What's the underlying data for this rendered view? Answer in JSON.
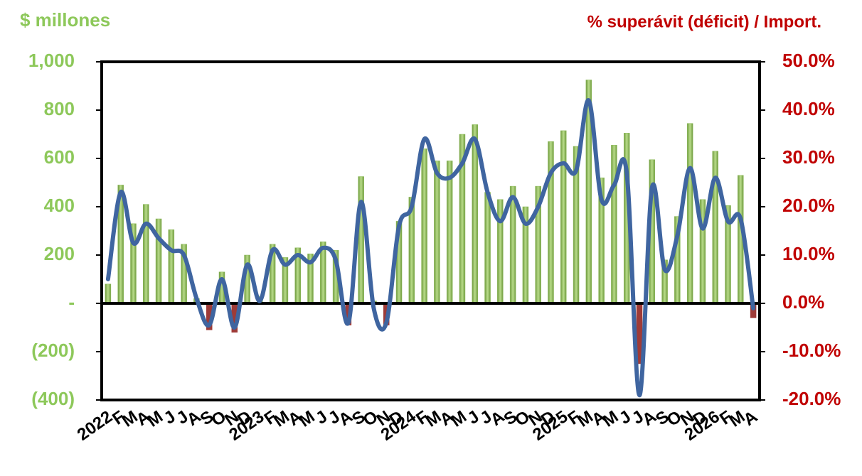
{
  "chart_data": {
    "type": "bar_line",
    "y_label": "$ millones",
    "y2_label": "% superávit (déficit) / Import.",
    "categories": [
      "2022",
      "F",
      "M",
      "A",
      "M",
      "J",
      "J",
      "A",
      "S",
      "O",
      "N",
      "D",
      "2023",
      "F",
      "M",
      "A",
      "M",
      "J",
      "J",
      "A",
      "S",
      "O",
      "N",
      "D",
      "2024",
      "F",
      "M",
      "A",
      "M",
      "J",
      "J",
      "A",
      "S",
      "O",
      "N",
      "D",
      "2025",
      "F",
      "M",
      "A",
      "M",
      "J",
      "J",
      "A",
      "S",
      "O",
      "N",
      "D",
      "2026",
      "F",
      "M",
      "A"
    ],
    "series": [
      {
        "type": "bar",
        "color": "#8dbb5a",
        "negative_color": "#9e3b38",
        "values": [
          80,
          490,
          330,
          410,
          350,
          305,
          245,
          20,
          -110,
          130,
          -120,
          200,
          30,
          245,
          190,
          230,
          205,
          255,
          220,
          -90,
          525,
          10,
          -90,
          340,
          440,
          640,
          590,
          590,
          700,
          740,
          460,
          430,
          485,
          400,
          485,
          670,
          715,
          650,
          925,
          520,
          655,
          705,
          -250,
          595,
          180,
          360,
          745,
          430,
          630,
          405,
          530,
          -60
        ]
      },
      {
        "type": "line",
        "axis": "y2",
        "color": "#3f65a0",
        "values": [
          5,
          23,
          12.5,
          16.5,
          13.5,
          11,
          10,
          1,
          -4.5,
          5,
          -5,
          8,
          0.5,
          11,
          8,
          10,
          8.5,
          11.5,
          9,
          -4,
          21,
          -1,
          -4,
          16,
          20,
          34,
          27,
          26,
          29,
          34,
          23,
          17,
          22,
          16.5,
          20,
          27,
          29,
          27.5,
          42,
          21.5,
          24.5,
          27,
          -19,
          24,
          7,
          14,
          28,
          15.5,
          26,
          17,
          17.5,
          -1
        ]
      }
    ],
    "ylim": [
      -400,
      1000
    ],
    "yticks": [
      {
        "value": -400,
        "label": "(400)"
      },
      {
        "value": -200,
        "label": "(200)"
      },
      {
        "value": 0,
        "label": "-"
      },
      200,
      400,
      600,
      800,
      {
        "value": 1000,
        "label": "1,000"
      }
    ],
    "y2lim": [
      -20,
      50
    ],
    "y2ticks": [
      {
        "value": -20,
        "label": "-20.0%"
      },
      {
        "value": -10,
        "label": "-10.0%"
      },
      {
        "value": 0,
        "label": "0.0%"
      },
      {
        "value": 10,
        "label": "10.0%"
      },
      {
        "value": 20,
        "label": "20.0%"
      },
      {
        "value": 30,
        "label": "30.0%"
      },
      {
        "value": 40,
        "label": "40.0%"
      },
      {
        "value": 50,
        "label": "50.0%"
      }
    ]
  }
}
